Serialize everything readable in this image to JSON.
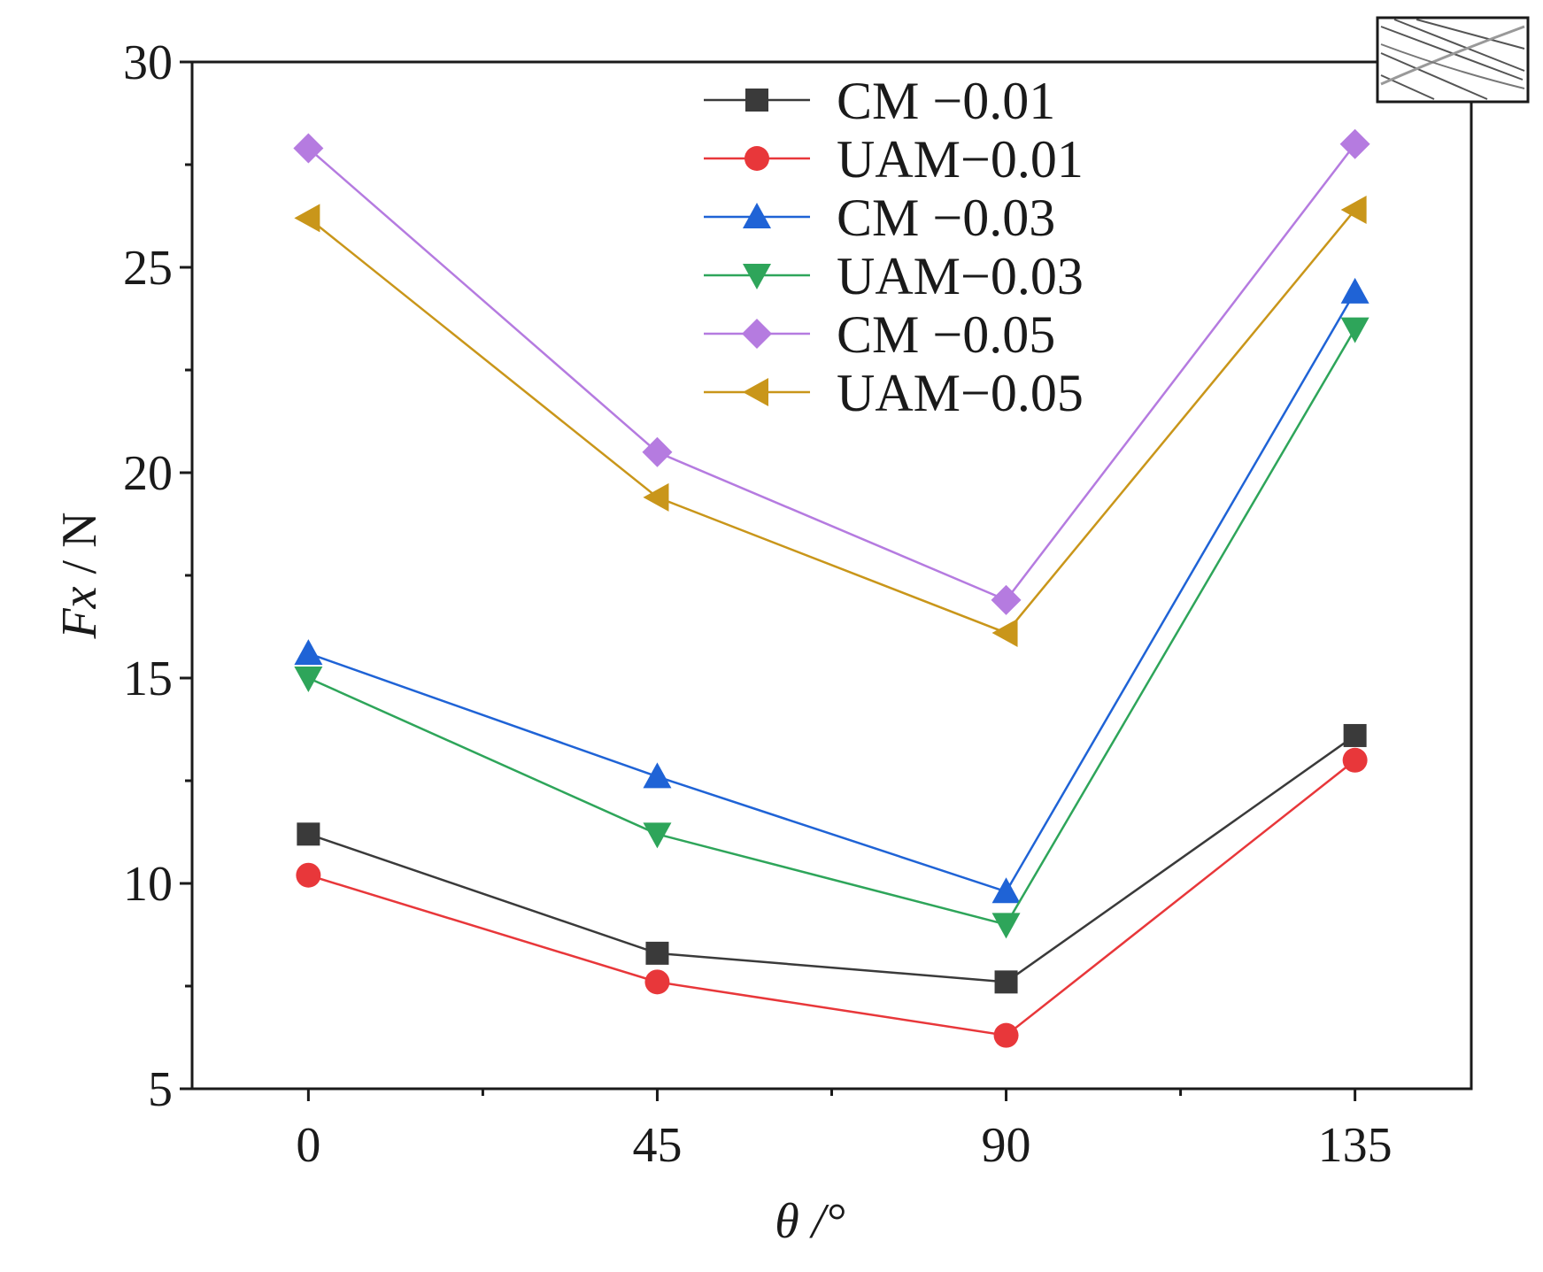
{
  "chart_data": {
    "type": "line",
    "xlabel": "θ /°",
    "ylabel_italic": "Fx",
    "ylabel_unit": "/ N",
    "x": [
      0,
      45,
      90,
      135
    ],
    "xlim": [
      -15,
      150
    ],
    "ylim": [
      5,
      30
    ],
    "xticks": [
      "0",
      "45",
      "90",
      "135"
    ],
    "yticks": [
      "5",
      "10",
      "15",
      "20",
      "25",
      "30"
    ],
    "legend_position": "top-center",
    "series": [
      {
        "name": "CM −0.01",
        "marker": "square",
        "color": "#3a3a3a",
        "values": [
          11.2,
          8.3,
          7.6,
          13.6
        ]
      },
      {
        "name": "UAM−0.01",
        "marker": "circle",
        "color": "#e8373a",
        "values": [
          10.2,
          7.6,
          6.3,
          13.0
        ]
      },
      {
        "name": "CM −0.03",
        "marker": "triangle-up",
        "color": "#1f63d6",
        "values": [
          15.6,
          12.6,
          9.8,
          24.4
        ]
      },
      {
        "name": "UAM−0.03",
        "marker": "triangle-down",
        "color": "#2ea55a",
        "values": [
          15.0,
          11.2,
          9.0,
          23.5
        ]
      },
      {
        "name": "CM −0.05",
        "marker": "diamond",
        "color": "#b57be0",
        "values": [
          27.9,
          20.5,
          16.9,
          28.0
        ]
      },
      {
        "name": "UAM−0.05",
        "marker": "triangle-left",
        "color": "#c9961a",
        "values": [
          26.2,
          19.4,
          16.1,
          26.4
        ]
      }
    ]
  }
}
